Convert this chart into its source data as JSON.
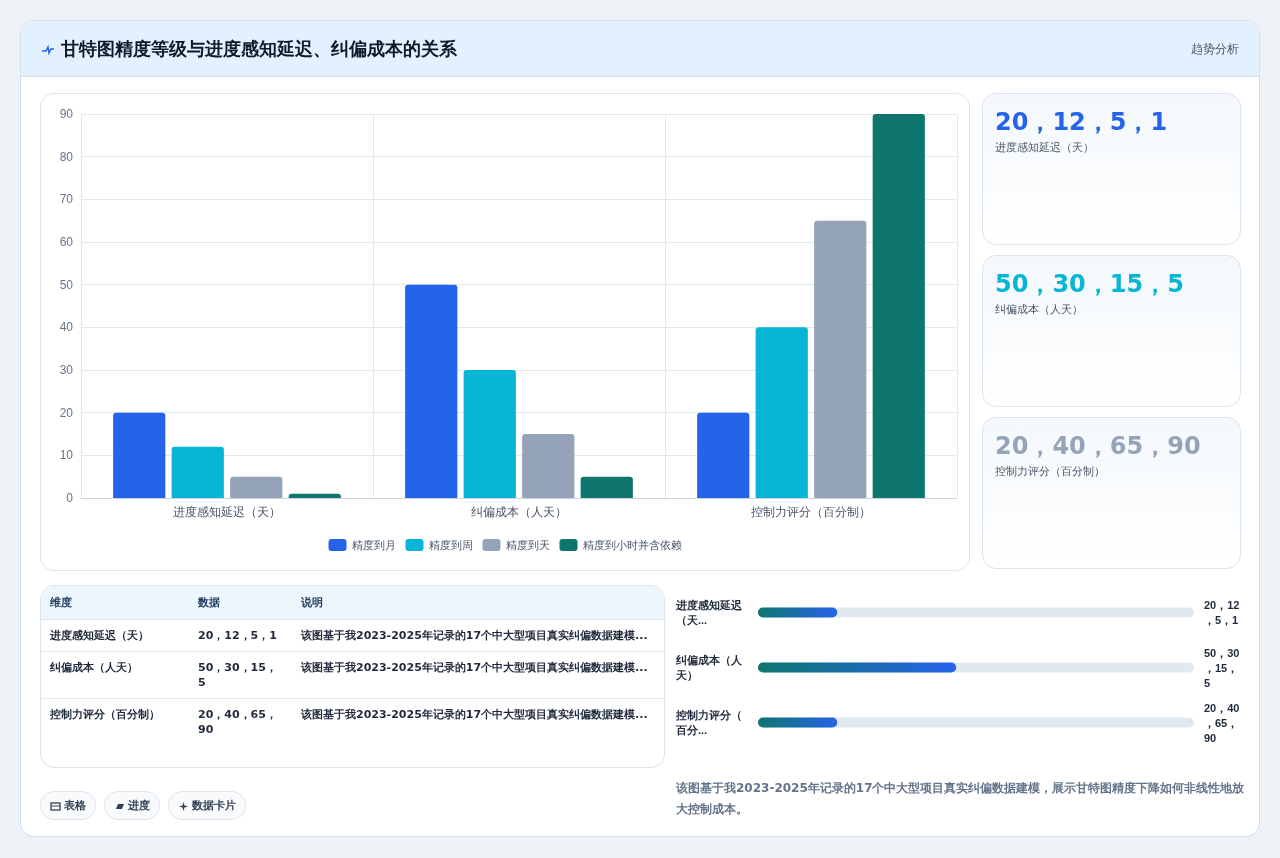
{
  "chart_data": [
    {
      "type": "bar",
      "title": "甘特图精度等级与进度感知延迟、纠偏成本的关系",
      "categories": [
        "进度感知延迟（天）",
        "纠偏成本（人天）",
        "控制力评分（百分制）"
      ],
      "series": [
        {
          "name": "精度到月",
          "color": "#2563eb",
          "values": [
            20,
            50,
            20
          ]
        },
        {
          "name": "精度到周",
          "color": "#06b6d4",
          "values": [
            12,
            30,
            40
          ]
        },
        {
          "name": "精度到天",
          "color": "#94a3b8",
          "values": [
            5,
            15,
            65
          ]
        },
        {
          "name": "精度到小时并含依赖",
          "color": "#0f766e",
          "values": [
            1,
            5,
            90
          ]
        }
      ],
      "ylim": [
        0,
        90
      ],
      "yticks": [
        0,
        10,
        20,
        30,
        40,
        50,
        60,
        70,
        80,
        90
      ],
      "grid": true,
      "legend": "bottom"
    },
    {
      "type": "other",
      "annotations": [
        "20，12，5，1",
        "进度感知延迟（天）",
        "50，30，15，5",
        "纠偏成本（人天）",
        "20，40，65，90",
        "控制力评分（百分制）"
      ]
    },
    {
      "type": "other",
      "annotations": [
        "维度",
        "数据",
        "说明",
        "进度感知延迟（天）",
        "20，12，5，1",
        "该图基于我2023-2025年记录的17个中大型项目真实纠偏数据建模...",
        "纠偏成本（人天）",
        "50，30，15，5",
        "该图基于我2023-2025年记录的17个中大型项目真实纠偏数据建模...",
        "控制力评分（百分制）",
        "20，40，65，90",
        "该图基于我2023-2025年记录的17个中大型项目真实纠偏数据建模..."
      ]
    },
    {
      "type": "bar",
      "orientation": "horizontal",
      "xlim": [
        0,
        110
      ],
      "categories": [
        "进度感知延迟（天...",
        "纠偏成本（人天）",
        "控制力评分（百分..."
      ],
      "values": [
        20,
        50,
        20
      ],
      "color": "#2563eb",
      "value_labels": [
        "20，12，5，1",
        "50，30，15，5",
        "20，40，65，90"
      ],
      "annotations": [
        "该图基于我2023-2025年记录的17个中大型项目真实纠偏数据建模，展示甘特图精度下降如何非线性地放大控制成本。"
      ]
    },
    {
      "type": "other",
      "annotations": [
        "表格",
        "进度",
        "数据卡片"
      ]
    },
    {
      "type": "other",
      "annotations": [
        "趋势分析"
      ]
    }
  ]
}
